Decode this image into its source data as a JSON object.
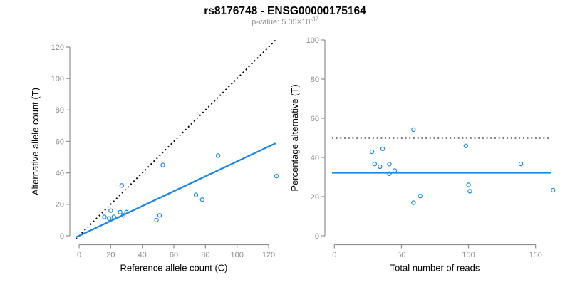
{
  "header": {
    "title": "rs8176748 - ENSG00000175164",
    "pvalue_base": "p-value: 5.05×10",
    "pvalue_exponent": "-32"
  },
  "colors": {
    "accent_blue": "#1e86e5",
    "line_black": "#000000",
    "axis_gray": "#8f8f8f",
    "tick_label_gray": "#8c8c8c",
    "label_black": "#000000",
    "subtitle_gray": "#8c8c8c",
    "background": "#ffffff"
  },
  "chart_data": [
    {
      "name": "allele-count-scatter",
      "type": "scatter",
      "title": "",
      "xlabel": "Reference allele count (C)",
      "ylabel": "Alternative allele count (T)",
      "xticks": [
        0,
        20,
        40,
        60,
        80,
        100,
        120
      ],
      "yticks": [
        0,
        20,
        40,
        60,
        80,
        100,
        120
      ],
      "xlim": [
        -2.5,
        126
      ],
      "ylim": [
        -2,
        125
      ],
      "grid": false,
      "legend": "none",
      "marker": "open-circle",
      "marker_color": "#1e86e5",
      "points": [
        [
          20,
          16
        ],
        [
          16,
          12
        ],
        [
          19,
          11
        ],
        [
          22,
          12
        ],
        [
          26,
          15
        ],
        [
          28,
          13
        ],
        [
          30,
          15
        ],
        [
          27,
          32
        ],
        [
          53,
          45
        ],
        [
          88,
          51
        ],
        [
          125,
          38
        ],
        [
          74,
          26
        ],
        [
          78,
          23
        ],
        [
          51,
          13
        ],
        [
          49,
          10
        ]
      ],
      "lines": [
        {
          "name": "identity-line",
          "style": "dotted",
          "color": "#000000",
          "x1": -2,
          "y1": -2,
          "x2": 124.5,
          "y2": 124.5
        },
        {
          "name": "fit-line",
          "style": "solid",
          "color": "#1e86e5",
          "x1": -2,
          "y1": -0.95,
          "x2": 124.4,
          "y2": 58.8
        }
      ]
    },
    {
      "name": "percentage-scatter",
      "type": "scatter",
      "title": "",
      "xlabel": "Total number of reads",
      "ylabel": "Percentage alternative (T)",
      "xticks": [
        0,
        50,
        100,
        150
      ],
      "yticks": [
        0,
        20,
        40,
        60,
        80,
        100
      ],
      "xlim": [
        -7,
        164
      ],
      "ylim": [
        0,
        100
      ],
      "grid": false,
      "legend": "none",
      "marker": "open-circle",
      "marker_color": "#1e86e5",
      "points": [
        [
          36,
          44.4
        ],
        [
          28,
          42.9
        ],
        [
          30,
          36.7
        ],
        [
          34,
          35.3
        ],
        [
          41,
          36.6
        ],
        [
          41,
          31.7
        ],
        [
          45,
          33.3
        ],
        [
          59,
          54.2
        ],
        [
          98,
          45.9
        ],
        [
          139,
          36.7
        ],
        [
          163,
          23.3
        ],
        [
          100,
          26.0
        ],
        [
          101,
          22.8
        ],
        [
          64,
          20.3
        ],
        [
          59,
          16.9
        ]
      ],
      "lines": [
        {
          "name": "expected-50pct-line",
          "style": "dotted",
          "color": "#000000",
          "x1": -1.75,
          "y1": 50,
          "x2": 161.3,
          "y2": 50
        },
        {
          "name": "observed-mean-line",
          "style": "solid",
          "color": "#1e86e5",
          "x1": -1.75,
          "y1": 32.2,
          "x2": 161.3,
          "y2": 32.2
        }
      ]
    }
  ]
}
